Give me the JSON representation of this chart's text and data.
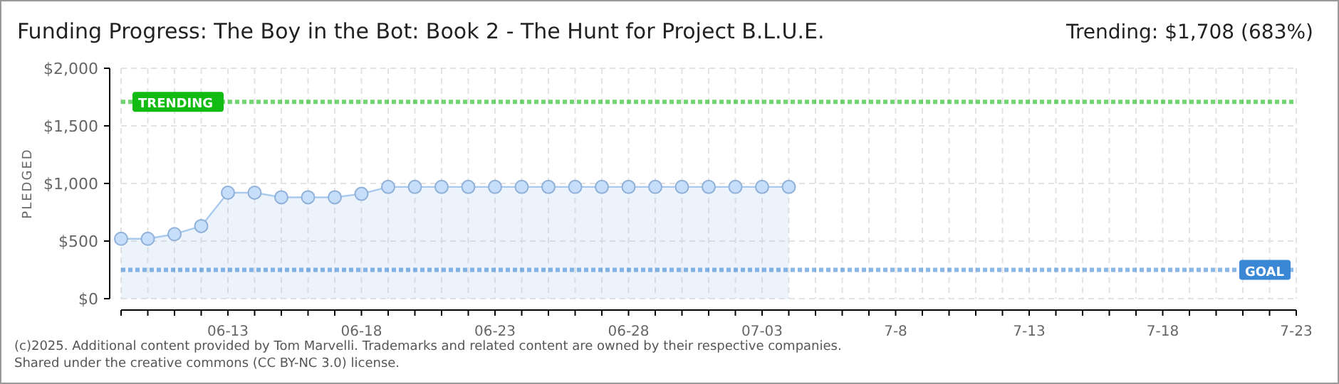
{
  "chart_data": {
    "type": "area",
    "title": "Funding Progress: The Boy in the Bot: Book 2 - The Hunt for Project B.L.U.E.",
    "subtitle": "Trending:  $1,708 (683%)",
    "ylabel": "PLEDGED",
    "x": [
      "2025-06-09",
      "2025-06-10",
      "2025-06-11",
      "2025-06-12",
      "2025-06-13",
      "2025-06-14",
      "2025-06-15",
      "2025-06-16",
      "2025-06-17",
      "2025-06-18",
      "2025-06-19",
      "2025-06-20",
      "2025-06-21",
      "2025-06-22",
      "2025-06-23",
      "2025-06-24",
      "2025-06-25",
      "2025-06-26",
      "2025-06-27",
      "2025-06-28",
      "2025-06-29",
      "2025-06-30",
      "2025-07-01",
      "2025-07-02",
      "2025-07-03",
      "2025-07-04"
    ],
    "series": [
      {
        "color": "#a9c9ef",
        "values": [
          520,
          520,
          560,
          630,
          920,
          920,
          880,
          880,
          880,
          910,
          970,
          970,
          970,
          970,
          970,
          970,
          970,
          970,
          970,
          970,
          970,
          970,
          970,
          970,
          970,
          970
        ]
      }
    ],
    "marker": "circle",
    "grid": true,
    "xlim": [
      "2025-06-09",
      "2025-07-23"
    ],
    "xticks": [
      {
        "value": "2025-06-13",
        "label": "06-13"
      },
      {
        "value": "2025-06-18",
        "label": "06-18"
      },
      {
        "value": "2025-06-23",
        "label": "06-23"
      },
      {
        "value": "2025-06-28",
        "label": "06-28"
      },
      {
        "value": "2025-07-03",
        "label": "07-03"
      },
      {
        "value": "2025-07-08",
        "label": "7-8"
      },
      {
        "value": "2025-07-13",
        "label": "7-13"
      },
      {
        "value": "2025-07-18",
        "label": "7-18"
      },
      {
        "value": "2025-07-23",
        "label": "7-23"
      }
    ],
    "ylim": [
      0,
      2000
    ],
    "yticks": [
      {
        "value": 0,
        "label": "$0"
      },
      {
        "value": 500,
        "label": "$500"
      },
      {
        "value": 1000,
        "label": "$1,000"
      },
      {
        "value": 1500,
        "label": "$1,500"
      },
      {
        "value": 2000,
        "label": "$2,000"
      }
    ],
    "ref_lines": [
      {
        "axis": "y",
        "value": 1708,
        "label": "TRENDING",
        "color": "#11bb11",
        "line_style": "dotted"
      },
      {
        "axis": "y",
        "value": 250,
        "label": "GOAL",
        "color": "#3a87d6",
        "line_style": "dotted"
      }
    ],
    "annotations": [
      "(c)2025. Additional content provided by Tom Marvelli. Trademarks and related content are owned by their respective companies.",
      "Shared under the creative commons (CC BY-NC 3.0) license."
    ]
  }
}
